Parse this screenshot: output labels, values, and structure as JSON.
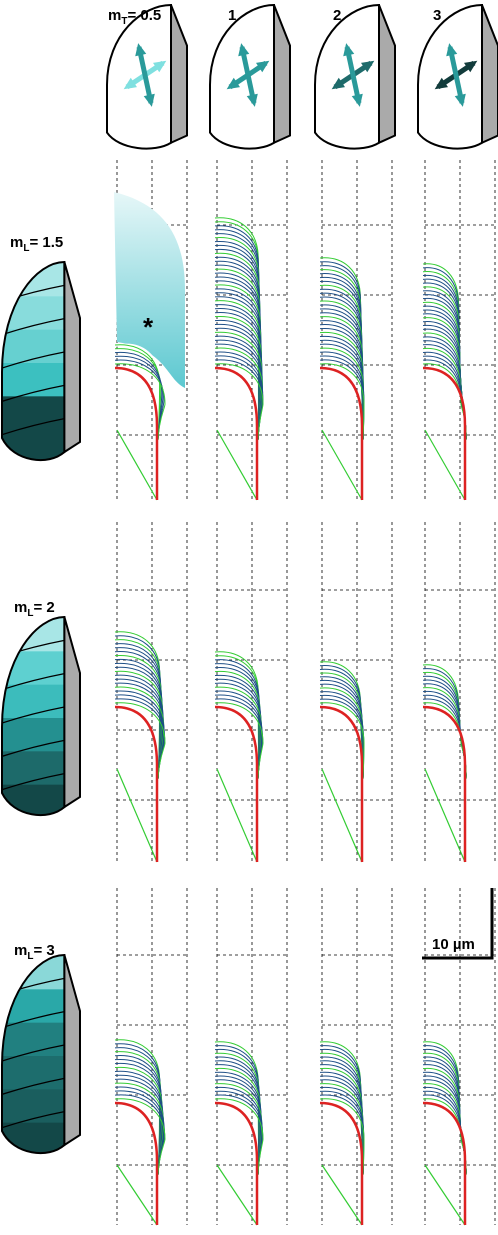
{
  "column_labels": [
    {
      "symbol": "m",
      "subscript": "T",
      "rest": "= 0.5"
    },
    "1",
    "2",
    "3"
  ],
  "row_labels": [
    {
      "symbol": "m",
      "subscript": "L",
      "rest": "= 1.5"
    },
    {
      "symbol": "m",
      "subscript": "L",
      "rest": "= 2"
    },
    {
      "symbol": "m",
      "subscript": "L",
      "rest": "= 3"
    }
  ],
  "annotation": "*",
  "scale_bar": "10 µm"
}
